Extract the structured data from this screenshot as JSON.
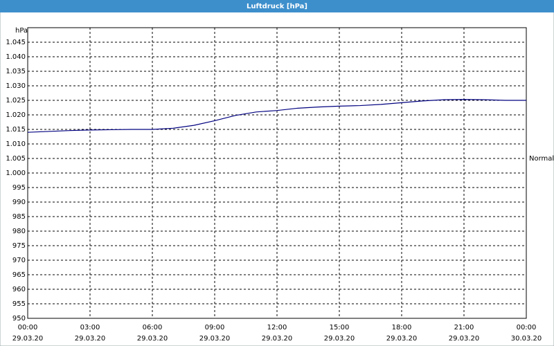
{
  "chart_data": {
    "type": "line",
    "title": "Luftdruck [hPa]",
    "y_unit": "hPa",
    "x": [
      0,
      1,
      2,
      3,
      4,
      5,
      6,
      7,
      8,
      9,
      10,
      11,
      12,
      13,
      14,
      15,
      16,
      17,
      18,
      19,
      20,
      21,
      22,
      23,
      24
    ],
    "series": [
      {
        "name": "Luftdruck",
        "color": "#000080",
        "values": [
          1014,
          1014.3,
          1014.6,
          1014.8,
          1014.9,
          1015,
          1015,
          1015.4,
          1016.4,
          1018,
          1019.8,
          1021,
          1021.5,
          1022.3,
          1022.7,
          1023,
          1023.2,
          1023.6,
          1024.2,
          1024.8,
          1025.2,
          1025.3,
          1025.2,
          1025,
          1025
        ]
      }
    ],
    "xlim": [
      0,
      24
    ],
    "xticks": [
      {
        "value": 0,
        "label": "00:00"
      },
      {
        "value": 3,
        "label": "03:00"
      },
      {
        "value": 6,
        "label": "06:00"
      },
      {
        "value": 9,
        "label": "09:00"
      },
      {
        "value": 12,
        "label": "12:00"
      },
      {
        "value": 15,
        "label": "15:00"
      },
      {
        "value": 18,
        "label": "18:00"
      },
      {
        "value": 21,
        "label": "21:00"
      },
      {
        "value": 24,
        "label": "00:00"
      }
    ],
    "xtick_dates": [
      "29.03.20",
      "29.03.20",
      "29.03.20",
      "29.03.20",
      "29.03.20",
      "29.03.20",
      "29.03.20",
      "29.03.20",
      "30.03.20"
    ],
    "ylim": [
      950,
      1050
    ],
    "yticks": [
      950,
      955,
      960,
      965,
      970,
      975,
      980,
      985,
      990,
      995,
      {
        "value": 1000,
        "label": "1.000"
      },
      {
        "value": 1005,
        "label": "1.005"
      },
      {
        "value": 1010,
        "label": "1.010"
      },
      {
        "value": 1015,
        "label": "1.015"
      },
      {
        "value": 1020,
        "label": "1.020"
      },
      {
        "value": 1025,
        "label": "1.025"
      },
      {
        "value": 1030,
        "label": "1.030"
      },
      {
        "value": 1035,
        "label": "1.035"
      },
      {
        "value": 1040,
        "label": "1.040"
      },
      {
        "value": 1045,
        "label": "1.045"
      }
    ],
    "reference": {
      "label": "Normal",
      "value": 1005
    },
    "grid": true
  }
}
